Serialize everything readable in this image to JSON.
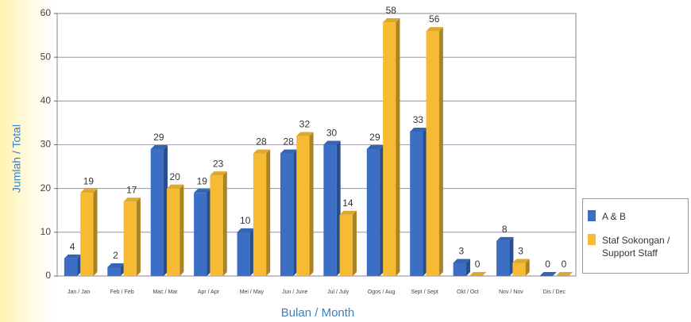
{
  "chart_data": {
    "type": "bar",
    "x_label": "Bulan / Month",
    "y_label": "Jumlah / Total",
    "categories": [
      "Jan / Jan",
      "Feb / Feb",
      "Mac / Mar",
      "Apr / Apr",
      "Mei / May",
      "Jun / June",
      "Jul / July",
      "Ogos / Aug",
      "Sept / Sept",
      "Okt / Oct",
      "Nov / Nov",
      "Dis / Dec"
    ],
    "series": [
      {
        "name": "A & B",
        "color": "#3b6fc6",
        "values": [
          4,
          2,
          29,
          19,
          10,
          28,
          30,
          29,
          33,
          3,
          8,
          0
        ]
      },
      {
        "name": "Staf Sokongan / Support Staff",
        "color": "#f6bb33",
        "values": [
          19,
          17,
          20,
          23,
          28,
          32,
          14,
          58,
          56,
          0,
          3,
          0
        ]
      }
    ],
    "ylim": [
      0,
      60
    ],
    "yticks": [
      0,
      10,
      20,
      30,
      40,
      50,
      60
    ],
    "grid": true,
    "legend": "right"
  }
}
